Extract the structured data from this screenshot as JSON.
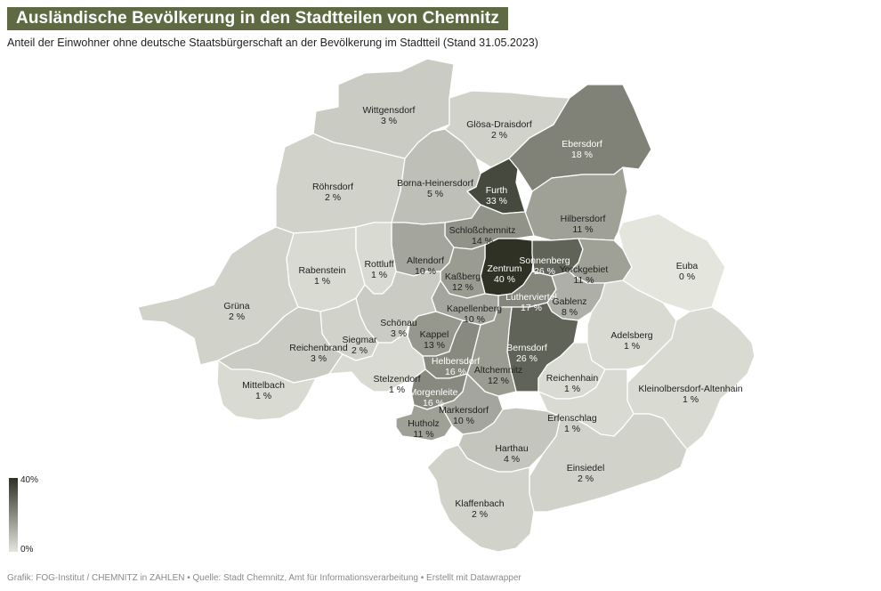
{
  "title": "Ausländische Bevölkerung in den Stadtteilen von Chemnitz",
  "subtitle": "Anteil der Einwohner ohne deutsche Staatsbürgerschaft an der Bevölkerung im Stadtteil (Stand 31.05.2023)",
  "legend": {
    "max_label": "40%",
    "min_label": "0%",
    "color_max": "#2e3124",
    "color_min": "#e4e5dd"
  },
  "footer": "Grafik: FOG-Institut / CHEMNITZ in ZAHLEN • Quelle: Stadt Chemnitz, Amt für Informationsverarbeitung • Erstellt mit Datawrapper",
  "colors": {
    "title_bg": "#5f6a43",
    "border": "#ffffff"
  },
  "districts": [
    {
      "name": "Wittgensdorf",
      "label": "3 %",
      "value": 3
    },
    {
      "name": "Glösa-Draisdorf",
      "label": "2 %",
      "value": 2
    },
    {
      "name": "Ebersdorf",
      "label": "18 %",
      "value": 18
    },
    {
      "name": "Röhrsdorf",
      "label": "2 %",
      "value": 2
    },
    {
      "name": "Borna-Heinersdorf",
      "label": "5 %",
      "value": 5
    },
    {
      "name": "Furth",
      "label": "33 %",
      "value": 33
    },
    {
      "name": "Hilbersdorf",
      "label": "11 %",
      "value": 11
    },
    {
      "name": "Schloßchemnitz",
      "label": "14 %",
      "value": 14
    },
    {
      "name": "Altendorf",
      "label": "10 %",
      "value": 10
    },
    {
      "name": "Rabenstein",
      "label": "1 %",
      "value": 1
    },
    {
      "name": "Rottluff",
      "label": "1 %",
      "value": 1
    },
    {
      "name": "Zentrum",
      "label": "40 %",
      "value": 40
    },
    {
      "name": "Sonnenberg",
      "label": "26 %",
      "value": 26
    },
    {
      "name": "Yorckgebiet",
      "label": "11 %",
      "value": 11
    },
    {
      "name": "Euba",
      "label": "0 %",
      "value": 0
    },
    {
      "name": "Kaßberg",
      "label": "12 %",
      "value": 12
    },
    {
      "name": "Lutherviertel",
      "label": "17 %",
      "value": 17
    },
    {
      "name": "Gablenz",
      "label": "8 %",
      "value": 8
    },
    {
      "name": "Grüna",
      "label": "2 %",
      "value": 2
    },
    {
      "name": "Kapellenberg",
      "label": "10 %",
      "value": 10
    },
    {
      "name": "Schönau",
      "label": "3 %",
      "value": 3
    },
    {
      "name": "Kappel",
      "label": "13 %",
      "value": 13
    },
    {
      "name": "Siegmar",
      "label": "2 %",
      "value": 2
    },
    {
      "name": "Reichenbrand",
      "label": "3 %",
      "value": 3
    },
    {
      "name": "Adelsberg",
      "label": "1 %",
      "value": 1
    },
    {
      "name": "Bernsdorf",
      "label": "26 %",
      "value": 26
    },
    {
      "name": "Helbersdorf",
      "label": "16 %",
      "value": 16
    },
    {
      "name": "Altchemnitz",
      "label": "12 %",
      "value": 12
    },
    {
      "name": "Stelzendorf",
      "label": "1 %",
      "value": 1
    },
    {
      "name": "Reichenhain",
      "label": "1 %",
      "value": 1
    },
    {
      "name": "Mittelbach",
      "label": "1 %",
      "value": 1
    },
    {
      "name": "Morgenleite",
      "label": "16 %",
      "value": 16
    },
    {
      "name": "Kleinolbersdorf-Altenhain",
      "label": "1 %",
      "value": 1
    },
    {
      "name": "Markersdorf",
      "label": "10 %",
      "value": 10
    },
    {
      "name": "Erfenschlag",
      "label": "1 %",
      "value": 1
    },
    {
      "name": "Hutholz",
      "label": "11 %",
      "value": 11
    },
    {
      "name": "Harthau",
      "label": "4 %",
      "value": 4
    },
    {
      "name": "Einsiedel",
      "label": "2 %",
      "value": 2
    },
    {
      "name": "Klaffenbach",
      "label": "2 %",
      "value": 2
    }
  ]
}
